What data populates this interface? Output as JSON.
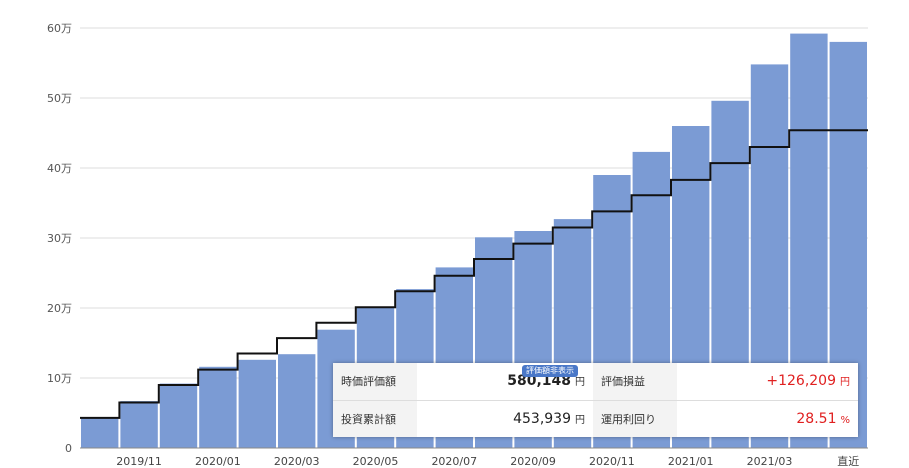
{
  "chart_data": {
    "type": "bar",
    "title": "",
    "xlabel": "",
    "ylabel": "",
    "ylim": [
      0,
      600000
    ],
    "y_ticks": [
      {
        "value": 0,
        "label": "0"
      },
      {
        "value": 100000,
        "label": "10万"
      },
      {
        "value": 200000,
        "label": "20万"
      },
      {
        "value": 300000,
        "label": "30万"
      },
      {
        "value": 400000,
        "label": "40万"
      },
      {
        "value": 500000,
        "label": "50万"
      },
      {
        "value": 600000,
        "label": "60万"
      }
    ],
    "x_tick_labels": [
      "",
      "2019/11",
      "",
      "2020/01",
      "",
      "2020/03",
      "",
      "2020/05",
      "",
      "2020/07",
      "",
      "2020/09",
      "",
      "2020/11",
      "",
      "2021/01",
      "",
      "2021/03",
      "",
      "直近"
    ],
    "grid": true,
    "series": [
      {
        "type": "bar",
        "color": "#7b9bd4",
        "values": [
          43000,
          67000,
          92000,
          116000,
          126000,
          134000,
          169000,
          201000,
          227000,
          258000,
          301000,
          310000,
          327000,
          390000,
          423000,
          460000,
          496000,
          548000,
          592000,
          580148
        ]
      },
      {
        "type": "step",
        "color": "#111111",
        "values": [
          43000,
          65000,
          90000,
          112000,
          135000,
          157000,
          179000,
          201000,
          224000,
          246000,
          270000,
          292000,
          315000,
          338000,
          361000,
          383000,
          407000,
          430000,
          453939,
          453939
        ]
      }
    ]
  },
  "summary": {
    "badge": "評価額非表示",
    "market_value_label": "時価評価額",
    "market_value": "580,148",
    "market_value_unit": "円",
    "gain_label": "評価損益",
    "gain_value": "+126,209",
    "gain_unit": "円",
    "invested_label": "投資累計額",
    "invested_value": "453,939",
    "invested_unit": "円",
    "yield_label": "運用利回り",
    "yield_value": "28.51",
    "yield_unit": "%"
  }
}
